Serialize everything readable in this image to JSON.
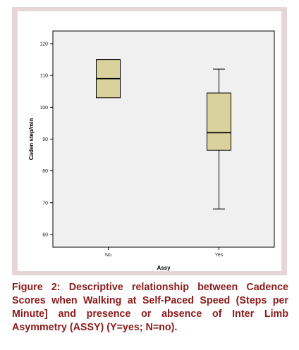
{
  "caption": {
    "label": "Figure 2:",
    "text": "Descriptive relationship between Cadence Scores when Walking at Self-Paced Speed (Steps per Minute] and presence or absence of Inter Limb Asymmetry (ASSY) (Y=yes; N=no)."
  },
  "colors": {
    "frame": "#e7d6d6",
    "plot_background": "#f0f0f0",
    "box_fill": "#d9d29d",
    "caption": "#8b1a1a"
  },
  "chart_data": {
    "type": "box",
    "title": "",
    "xlabel": "Assy",
    "ylabel": "Caden step/min",
    "ylim": [
      56,
      124
    ],
    "yticks": [
      60,
      70,
      80,
      90,
      100,
      110,
      120
    ],
    "grid": false,
    "legend": "none",
    "categories": [
      "No",
      "Yes"
    ],
    "boxes": [
      {
        "category": "No",
        "min": 103,
        "q1": 103,
        "median": 109,
        "q3": 115,
        "max": 115
      },
      {
        "category": "Yes",
        "min": 68,
        "q1": 86.5,
        "median": 92,
        "q3": 104.5,
        "max": 112
      }
    ]
  }
}
